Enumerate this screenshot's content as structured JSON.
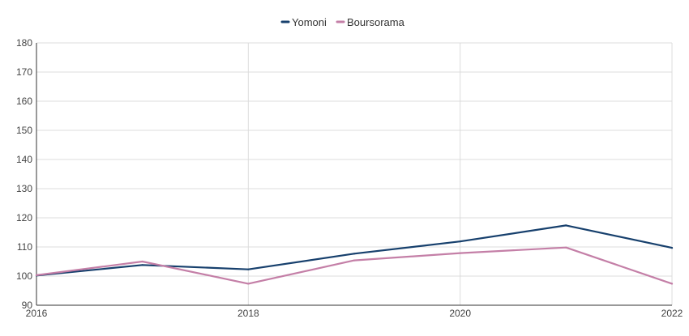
{
  "chart_data": {
    "type": "line",
    "title": "",
    "xlabel": "",
    "ylabel": "",
    "x": [
      2016,
      2017,
      2018,
      2019,
      2020,
      2021,
      2022
    ],
    "xlim": [
      2016,
      2022
    ],
    "ylim": [
      90,
      180
    ],
    "x_ticks": [
      "2016",
      "2018",
      "2020",
      "2022"
    ],
    "x_tick_values": [
      2016,
      2018,
      2020,
      2022
    ],
    "y_ticks": [
      "90",
      "100",
      "110",
      "120",
      "130",
      "140",
      "150",
      "160",
      "170",
      "180"
    ],
    "y_tick_values": [
      90,
      100,
      110,
      120,
      130,
      140,
      150,
      160,
      170,
      180
    ],
    "grid": true,
    "legend_position": "top-center",
    "series": [
      {
        "name": "Yomoni",
        "color": "#17406d",
        "values": [
          100.2,
          103.8,
          102.3,
          107.7,
          111.9,
          117.4,
          109.7
        ]
      },
      {
        "name": "Boursorama",
        "color": "#c47fa7",
        "values": [
          100.3,
          105.0,
          97.4,
          105.4,
          107.9,
          109.8,
          97.4
        ]
      }
    ]
  }
}
